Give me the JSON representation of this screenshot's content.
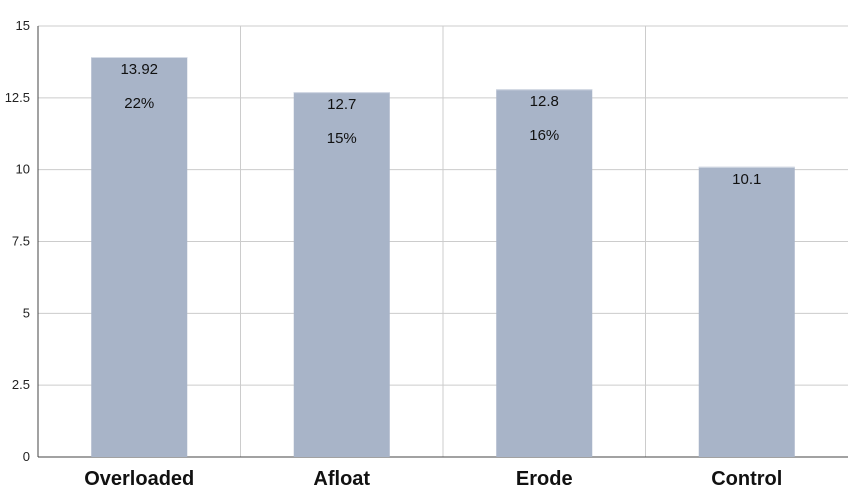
{
  "chart_data": {
    "type": "bar",
    "categories": [
      "Overloaded",
      "Afloat",
      "Erode",
      "Control"
    ],
    "values": [
      13.92,
      12.7,
      12.8,
      10.1
    ],
    "value_labels": [
      "13.92",
      "12.7",
      "12.8",
      "10.1"
    ],
    "percent_labels": [
      "22%",
      "15%",
      "16%",
      ""
    ],
    "yticks": [
      "0",
      "2.5",
      "5",
      "7.5",
      "10",
      "12.5",
      "15"
    ],
    "ylim": [
      0,
      15
    ],
    "grid": true,
    "bar_color": "#a8b4c8",
    "gridline_color": "#cccccc",
    "title": "",
    "xlabel": "",
    "ylabel": ""
  }
}
